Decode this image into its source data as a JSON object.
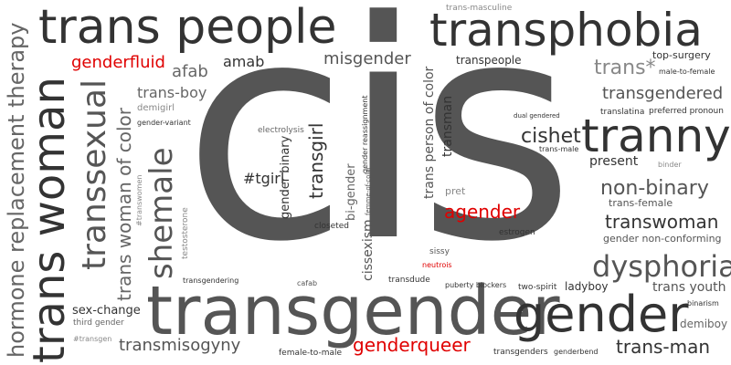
{
  "colors": {
    "dark": "#333333",
    "mid": "#555555",
    "light": "#888888",
    "accent": "#e00000"
  },
  "words": {
    "cis": "cis",
    "trans_people": "trans people",
    "transphobia": "transphobia",
    "transgender": "transgender",
    "trans_woman": "trans woman",
    "tranny": "tranny",
    "gender": "gender",
    "transsexual": "transsexual",
    "shemale": "shemale",
    "dysphoria": "dysphoria",
    "hormone_replacement_therapy": "hormone replacement therapy",
    "trans_woman_of_color": "trans woman of color",
    "transgendered": "transgendered",
    "non_binary": "non-binary",
    "transwoman": "transwoman",
    "trans_star": "trans*",
    "genderfluid": "genderfluid",
    "genderqueer": "genderqueer",
    "agender": "agender",
    "neutrois": "neutrois",
    "transmisogyny": "transmisogyny",
    "trans_man": "trans-man",
    "misgender": "misgender",
    "afab": "afab",
    "amab": "amab",
    "trans_boy": "trans-boy",
    "cishet": "cishet",
    "transgirl": "transgirl",
    "trans_person_of_color": "trans person of color",
    "transman": "transman",
    "cissexism": "cissexism",
    "bi_gender": "bi-gender",
    "gender_binary": "gender binary",
    "tgirl": "#tgirl",
    "present": "present",
    "transpeople": "transpeople",
    "trans_masculine": "trans-masculine",
    "top_surgery": "top-surgery",
    "male_to_female": "male-to-female",
    "preferred_pronoun": "preferred pronoun",
    "translatina": "translatina",
    "dual_gendered": "dual gendered",
    "trans_male": "trans-male",
    "binder": "binder",
    "trans_female": "trans-female",
    "gender_non_conforming": "gender non-conforming",
    "trans_youth": "trans youth",
    "binarism": "binarism",
    "demiboy": "demiboy",
    "ladyboy": "ladyboy",
    "two_spirit": "two-spirit",
    "puberty_blockers": "puberty blockers",
    "transgenders": "transgenders",
    "genderbend": "genderbend",
    "female_to_male": "female-to-male",
    "third_gender": "third gender",
    "transgen_tag": "#transgen",
    "sex_change": "sex-change",
    "transgendering": "transgendering",
    "cafab": "cafab",
    "transdude": "transdude",
    "sissy": "sissy",
    "estrogen": "estrogen",
    "pret": "pret",
    "closeted": "closeted",
    "testosterone": "testosterone",
    "transwomen_tag": "#transwomen",
    "demigirl": "demigirl",
    "gender_variant": "gender-variant",
    "electrolysis": "electrolysis",
    "gender_reassignment": "gender reassignment",
    "femme_of_color": "femme-of-color"
  }
}
